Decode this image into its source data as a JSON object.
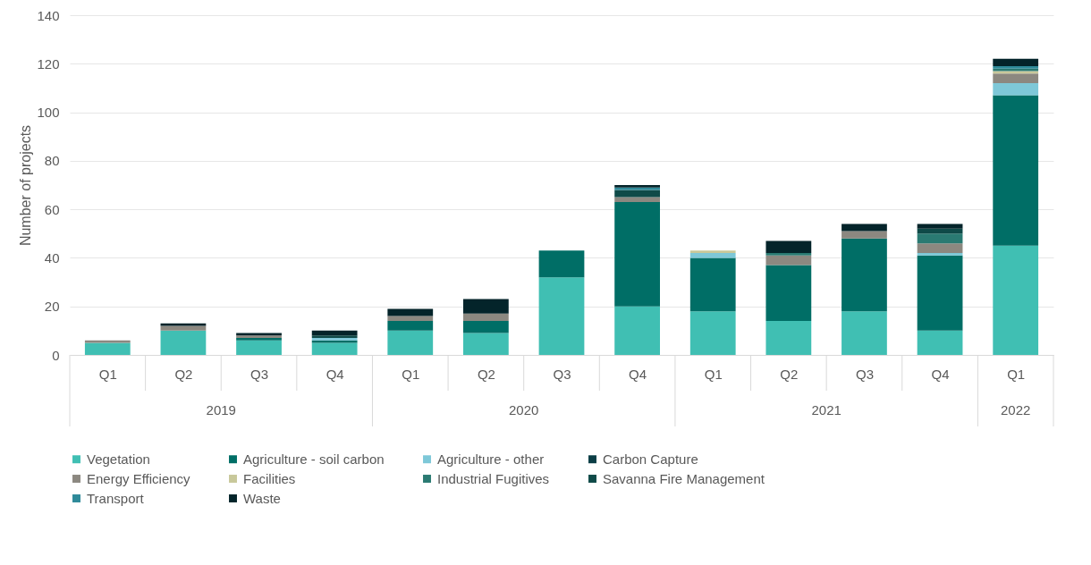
{
  "chart_data": {
    "type": "bar",
    "stacked": true,
    "ylabel": "Number of projects",
    "categories": [
      "Q1",
      "Q2",
      "Q3",
      "Q4",
      "Q1",
      "Q2",
      "Q3",
      "Q4",
      "Q1",
      "Q2",
      "Q3",
      "Q4",
      "Q1"
    ],
    "annotations": [
      "2019",
      "2020",
      "2021",
      "2022"
    ],
    "ylim": [
      0,
      140
    ],
    "yticks": [
      0,
      20,
      40,
      60,
      80,
      100,
      120,
      140
    ],
    "grid": "y",
    "legend": "bottom",
    "series": [
      {
        "name": "Vegetation",
        "color": "#40bfb3",
        "values": [
          5,
          10,
          6,
          5,
          10,
          9,
          32,
          20,
          18,
          14,
          18,
          10,
          45
        ]
      },
      {
        "name": "Agriculture - soil carbon",
        "color": "#006e66",
        "values": [
          0,
          0,
          1,
          1,
          4,
          5,
          11,
          43,
          22,
          23,
          30,
          31,
          62
        ]
      },
      {
        "name": "Agriculture - other",
        "color": "#7ec8d8",
        "values": [
          0,
          0,
          0,
          1,
          0,
          0,
          0,
          0,
          2,
          0,
          0,
          1,
          5
        ]
      },
      {
        "name": "Carbon Capture",
        "color": "#0b3d45",
        "values": [
          0,
          0,
          0,
          0,
          0,
          0,
          0,
          0,
          0,
          0,
          0,
          0,
          0
        ]
      },
      {
        "name": "Energy Efficiency",
        "color": "#8c8880",
        "values": [
          1,
          2,
          1,
          0,
          2,
          3,
          0,
          2,
          0,
          4,
          3,
          4,
          4
        ]
      },
      {
        "name": "Facilities",
        "color": "#c8c89a",
        "values": [
          0,
          0,
          0,
          0,
          0,
          0,
          0,
          0,
          1,
          0,
          0,
          0,
          1
        ]
      },
      {
        "name": "Industrial Fugitives",
        "color": "#2a7a72",
        "values": [
          0,
          0,
          0,
          0,
          0,
          0,
          0,
          0,
          0,
          1,
          0,
          4,
          1
        ]
      },
      {
        "name": "Savanna Fire Management",
        "color": "#0f4a48",
        "values": [
          0,
          0,
          0,
          1,
          0,
          0,
          0,
          3,
          0,
          0,
          0,
          2,
          0
        ]
      },
      {
        "name": "Transport",
        "color": "#2e8a99",
        "values": [
          0,
          0,
          0,
          0,
          0,
          0,
          0,
          1,
          0,
          0,
          0,
          0,
          1
        ]
      },
      {
        "name": "Waste",
        "color": "#04242a",
        "values": [
          0,
          1,
          1,
          2,
          3,
          6,
          0,
          1,
          0,
          5,
          3,
          2,
          3
        ]
      }
    ]
  }
}
